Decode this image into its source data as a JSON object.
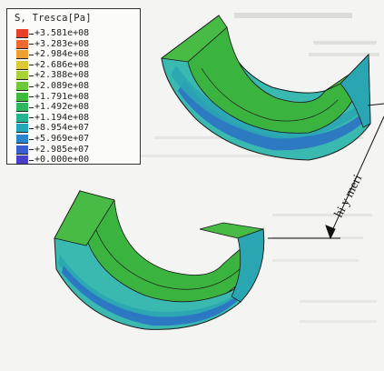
{
  "legend": {
    "title": "S, Tresca[Pa]",
    "entries": [
      {
        "label": "+3.581e+08",
        "color": "#e8402a"
      },
      {
        "label": "+3.283e+08",
        "color": "#ee6a30"
      },
      {
        "label": "+2.984e+08",
        "color": "#f0a030"
      },
      {
        "label": "+2.686e+08",
        "color": "#dcc833"
      },
      {
        "label": "+2.388e+08",
        "color": "#a8d236"
      },
      {
        "label": "+2.089e+08",
        "color": "#6ec83a"
      },
      {
        "label": "+1.791e+08",
        "color": "#3fba3c"
      },
      {
        "label": "+1.492e+08",
        "color": "#2eb760"
      },
      {
        "label": "+1.194e+08",
        "color": "#26b48e"
      },
      {
        "label": "+8.954e+07",
        "color": "#22a8b8"
      },
      {
        "label": "+5.969e+07",
        "color": "#2a86cc"
      },
      {
        "label": "+2.985e+07",
        "color": "#3a5ed0"
      },
      {
        "label": "+0.000e+00",
        "color": "#4a3fc8"
      }
    ]
  },
  "dimension_label": "hi y meri",
  "colors": {
    "green_inner": "#3bb33f",
    "green_mid": "#48bb44",
    "cyan": "#3ab9b0",
    "teal": "#2aa6b2",
    "blue": "#2c6ec7",
    "outline": "#1a1a1a"
  }
}
